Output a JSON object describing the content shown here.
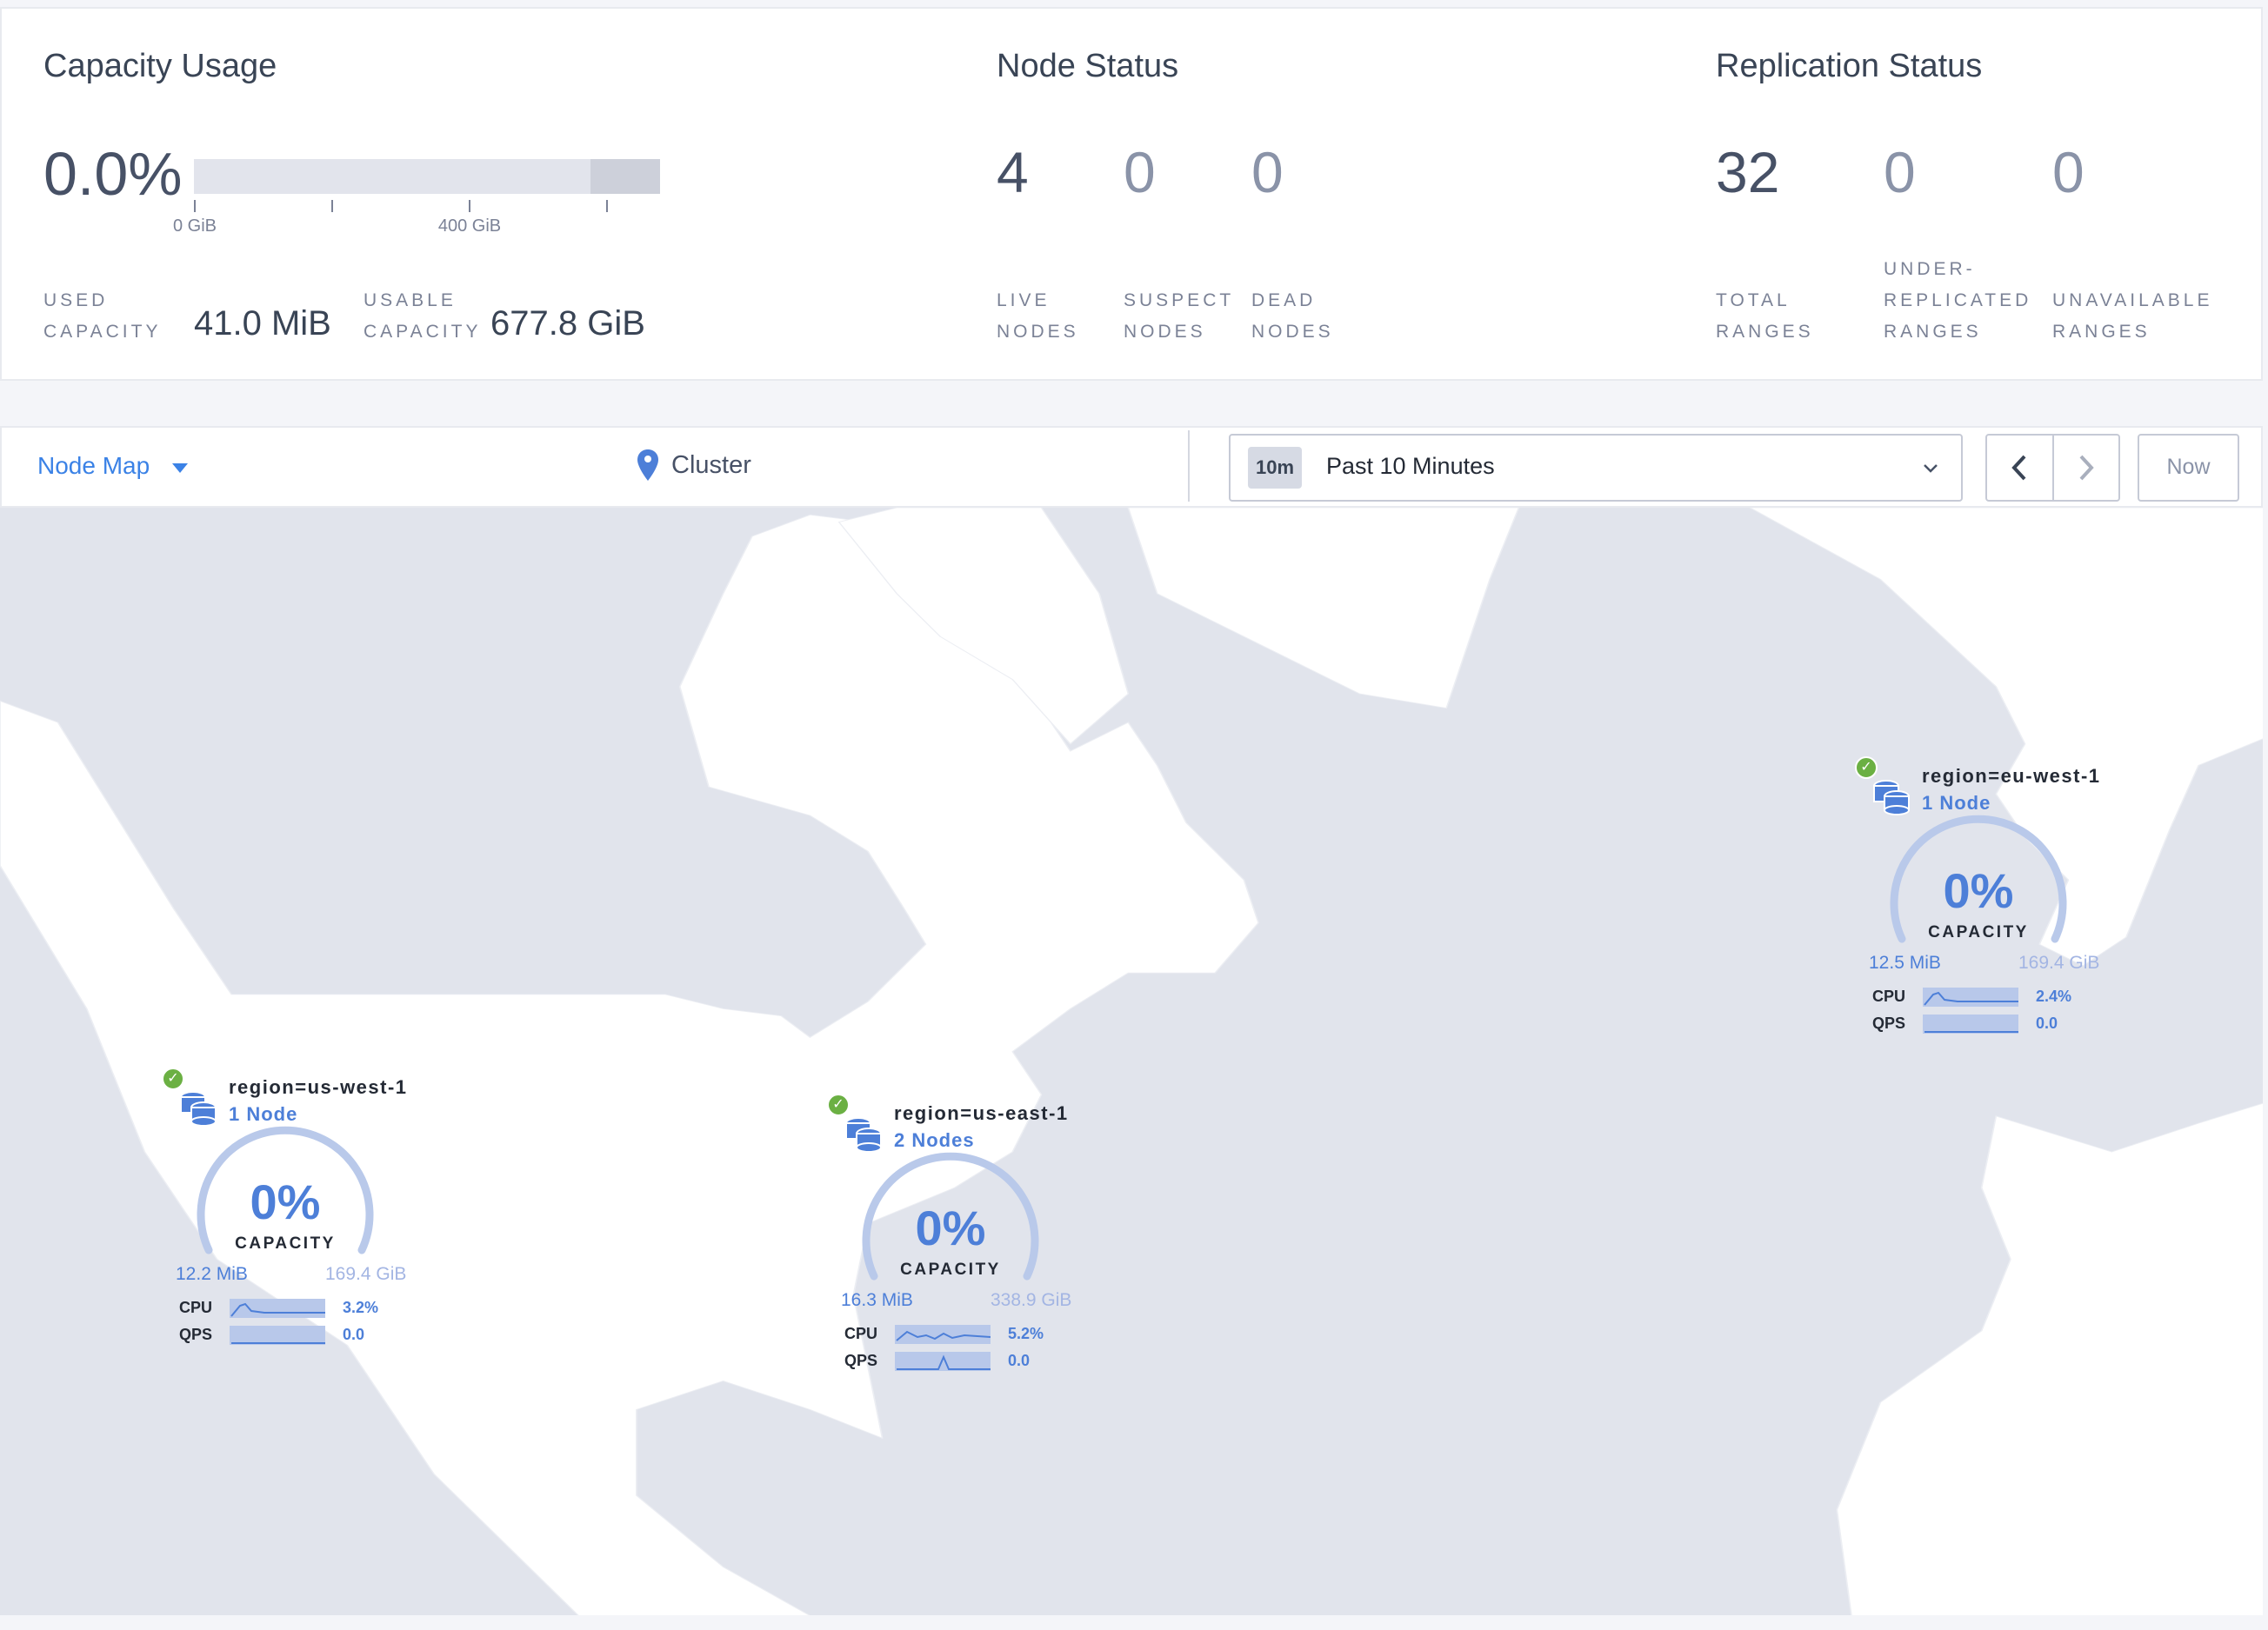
{
  "capacity": {
    "title": "Capacity Usage",
    "percent": "0.0%",
    "axis_ticks": [
      "0 GiB",
      "400 GiB"
    ],
    "used_fraction": 0.0,
    "used_label_1": "USED",
    "used_label_2": "CAPACITY",
    "used_value": "41.0 MiB",
    "usable_label_1": "USABLE",
    "usable_label_2": "CAPACITY",
    "usable_value": "677.8 GiB"
  },
  "node_status": {
    "title": "Node Status",
    "stats": [
      {
        "value": "4",
        "label_1": "LIVE",
        "label_2": "NODES"
      },
      {
        "value": "0",
        "label_1": "SUSPECT",
        "label_2": "NODES"
      },
      {
        "value": "0",
        "label_1": "DEAD",
        "label_2": "NODES"
      }
    ]
  },
  "replication": {
    "title": "Replication Status",
    "stats": [
      {
        "value": "32",
        "label_1": "TOTAL",
        "label_2": "RANGES"
      },
      {
        "value": "0",
        "label_0": "UNDER-",
        "label_1": "REPLICATED",
        "label_2": "RANGES"
      },
      {
        "value": "0",
        "label_1": "UNAVAILABLE",
        "label_2": "RANGES"
      }
    ]
  },
  "toolbar": {
    "view": "Node Map",
    "breadcrumb": "Cluster",
    "time_badge": "10m",
    "time_range": "Past 10 Minutes",
    "now": "Now"
  },
  "colors": {
    "accent": "#4d7fd8",
    "live": "#6bb043",
    "map_water": "#e1e4ec",
    "map_land": "#ffffff"
  },
  "regions": [
    {
      "name": "region=us-west-1",
      "nodes": "1 Node",
      "capacity_pct": "0%",
      "capacity_label": "CAPACITY",
      "used": "12.2 MiB",
      "total": "169.4 GiB",
      "cpu_label": "CPU",
      "cpu": "3.2%",
      "qps_label": "QPS",
      "qps": "0.0",
      "status": "live"
    },
    {
      "name": "region=us-east-1",
      "nodes": "2 Nodes",
      "capacity_pct": "0%",
      "capacity_label": "CAPACITY",
      "used": "16.3 MiB",
      "total": "338.9 GiB",
      "cpu_label": "CPU",
      "cpu": "5.2%",
      "qps_label": "QPS",
      "qps": "0.0",
      "status": "live"
    },
    {
      "name": "region=eu-west-1",
      "nodes": "1 Node",
      "capacity_pct": "0%",
      "capacity_label": "CAPACITY",
      "used": "12.5 MiB",
      "total": "169.4 GiB",
      "cpu_label": "CPU",
      "cpu": "2.4%",
      "qps_label": "QPS",
      "qps": "0.0",
      "status": "live"
    }
  ]
}
